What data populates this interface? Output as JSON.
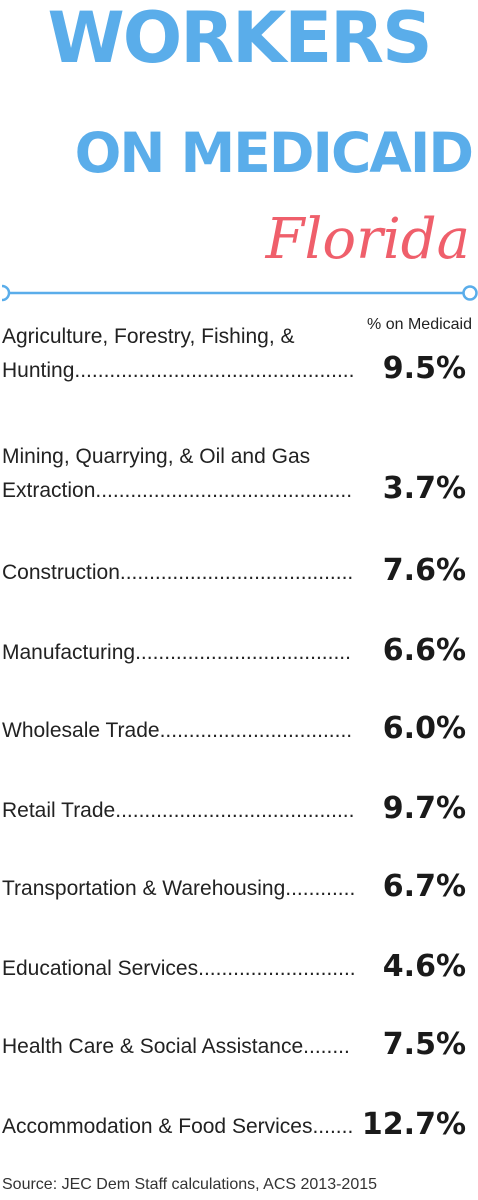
{
  "header": {
    "title_line1": "WORKERS",
    "title_line2": "ON MEDICAID",
    "state": "Florida"
  },
  "colors": {
    "title_blue": "#5aadea",
    "state_red": "#ef5f6b",
    "divider": "#5aadea"
  },
  "chart_data": {
    "type": "table",
    "value_header": "% on Medicaid",
    "unit": "%",
    "rows": [
      {
        "category": "Agriculture, Forestry, Fishing, & Hunting",
        "value": 9.5,
        "label": "9.5%"
      },
      {
        "category": "Mining, Quarrying, & Oil and Gas Extraction",
        "value": 3.7,
        "label": "3.7%"
      },
      {
        "category": "Construction",
        "value": 7.6,
        "label": "7.6%"
      },
      {
        "category": "Manufacturing",
        "value": 6.6,
        "label": "6.6%"
      },
      {
        "category": "Wholesale Trade",
        "value": 6.0,
        "label": "6.0%"
      },
      {
        "category": "Retail Trade",
        "value": 9.7,
        "label": "9.7%"
      },
      {
        "category": "Transportation & Warehousing",
        "value": 6.7,
        "label": "6.7%"
      },
      {
        "category": "Educational Services",
        "value": 4.6,
        "label": "4.6%"
      },
      {
        "category": "Health Care & Social Assistance",
        "value": 7.5,
        "label": "7.5%"
      },
      {
        "category": "Accommodation & Food Services",
        "value": 12.7,
        "label": "12.7%"
      }
    ]
  },
  "footer": {
    "source": "Source: JEC Dem Staff calculations, ACS 2013-2015"
  }
}
